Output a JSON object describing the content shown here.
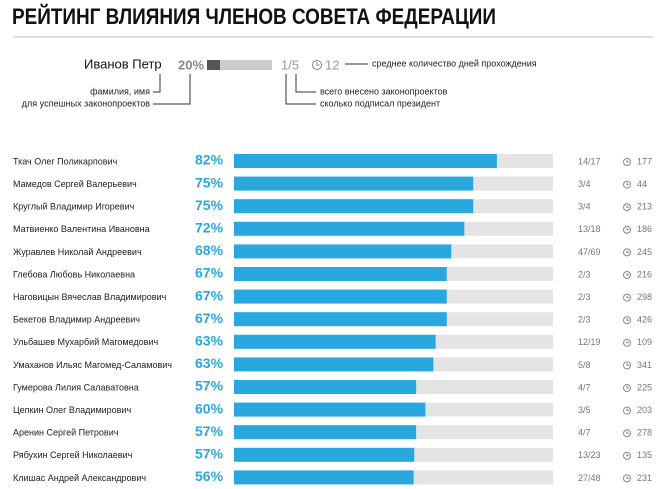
{
  "chart_data": {
    "type": "bar",
    "title": "РЕЙТИНГ ВЛИЯНИЯ ЧЛЕНОВ СОВЕТА ФЕДЕРАЦИИ",
    "legend": {
      "name": "Иванов Петр",
      "percent": 20,
      "percent_label": "20%",
      "ratio": "1/5",
      "days": 12,
      "days_note": "среднее количество дней прохождения",
      "name_note": "фамилия, имя",
      "percent_note": "для успешных законопроектов",
      "total_note": "всего внесено законопроектов",
      "signed_note": "сколько подписал президент"
    },
    "categories": [
      "Ткач Олег Поликарпович",
      "Мамедов Сергей Валерьевич",
      "Круглый Владимир Игоревич",
      "Матвиенко Валентина Ивановна",
      "Журавлев Николай Андреевич",
      "Глебова Любовь Николаевна",
      "Наговицын Вячеслав Владимирович",
      "Бекетов Владимир Андреевич",
      "Ульбашев Мухарбий Магомедович",
      "Умаханов Ильяс Магомед-Саламович",
      "Гумерова Лилия Салаватовна",
      "Цепкин Олег Владимирович",
      "Аренин Сергей Петрович",
      "Рябухин Сергей Николаевич",
      "Клишас Андрей Александрович"
    ],
    "values": [
      82.4,
      75,
      75,
      72.2,
      68.1,
      66.7,
      66.7,
      66.7,
      63.2,
      62.5,
      57.1,
      60,
      57.1,
      56.5,
      56.3
    ],
    "value_labels": [
      "82%",
      "75%",
      "75%",
      "72%",
      "68%",
      "67%",
      "67%",
      "67%",
      "63%",
      "63%",
      "57%",
      "60%",
      "57%",
      "57%",
      "56%"
    ],
    "ratios": [
      "14/17",
      "3/4",
      "3/4",
      "13/18",
      "47/69",
      "2/3",
      "2/3",
      "2/3",
      "12/19",
      "5/8",
      "4/7",
      "3/5",
      "4/7",
      "13/23",
      "27/48"
    ],
    "days": [
      177,
      44,
      213,
      186,
      245,
      216,
      298,
      426,
      109,
      341,
      225,
      203,
      278,
      135,
      231
    ],
    "xlim": [
      0,
      100
    ],
    "color": "#29a8e0",
    "track_color": "#e4e4e4"
  }
}
